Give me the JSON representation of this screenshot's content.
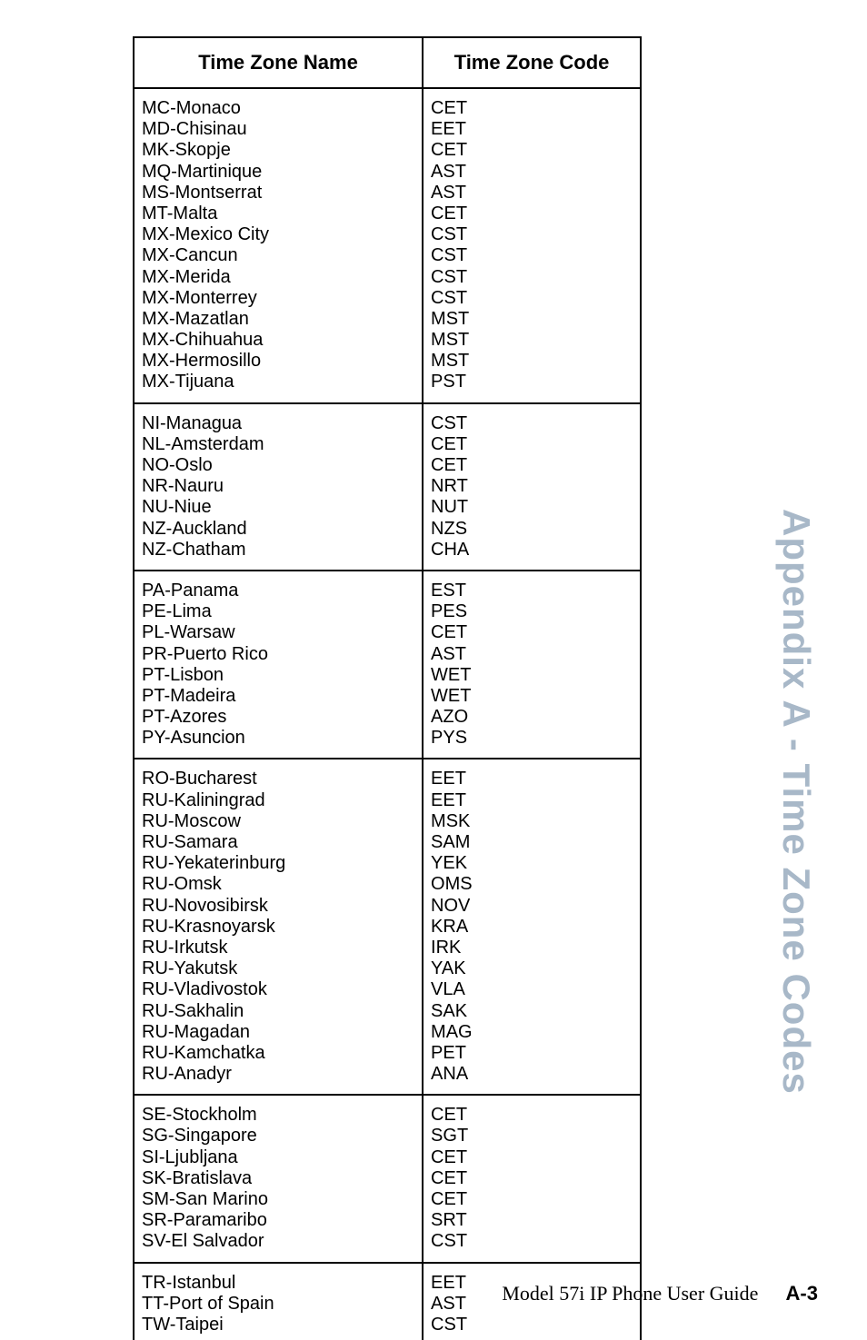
{
  "sidebar_title": "Appendix A - Time Zone Codes",
  "footer": {
    "guide": "Model 57i IP Phone User Guide",
    "pagenum": "A-3"
  },
  "table": {
    "headers": {
      "name": "Time Zone Name",
      "code": "Time Zone Code"
    },
    "groups": [
      {
        "rows": [
          {
            "name": "MC-Monaco",
            "code": "CET"
          },
          {
            "name": "MD-Chisinau",
            "code": "EET"
          },
          {
            "name": "MK-Skopje",
            "code": "CET"
          },
          {
            "name": "MQ-Martinique",
            "code": "AST"
          },
          {
            "name": "MS-Montserrat",
            "code": "AST"
          },
          {
            "name": "MT-Malta",
            "code": "CET"
          },
          {
            "name": "MX-Mexico City",
            "code": "CST"
          },
          {
            "name": "MX-Cancun",
            "code": "CST"
          },
          {
            "name": "MX-Merida",
            "code": "CST"
          },
          {
            "name": "MX-Monterrey",
            "code": "CST"
          },
          {
            "name": "MX-Mazatlan",
            "code": "MST"
          },
          {
            "name": "MX-Chihuahua",
            "code": "MST"
          },
          {
            "name": "MX-Hermosillo",
            "code": "MST"
          },
          {
            "name": "MX-Tijuana",
            "code": "PST"
          }
        ]
      },
      {
        "rows": [
          {
            "name": "NI-Managua",
            "code": "CST"
          },
          {
            "name": "NL-Amsterdam",
            "code": "CET"
          },
          {
            "name": "NO-Oslo",
            "code": "CET"
          },
          {
            "name": "NR-Nauru",
            "code": "NRT"
          },
          {
            "name": "NU-Niue",
            "code": "NUT"
          },
          {
            "name": "NZ-Auckland",
            "code": "NZS"
          },
          {
            "name": "NZ-Chatham",
            "code": "CHA"
          }
        ]
      },
      {
        "rows": [
          {
            "name": "PA-Panama",
            "code": "EST"
          },
          {
            "name": "PE-Lima",
            "code": "PES"
          },
          {
            "name": "PL-Warsaw",
            "code": "CET"
          },
          {
            "name": "PR-Puerto Rico",
            "code": "AST"
          },
          {
            "name": "PT-Lisbon",
            "code": "WET"
          },
          {
            "name": "PT-Madeira",
            "code": "WET"
          },
          {
            "name": "PT-Azores",
            "code": "AZO"
          },
          {
            "name": "PY-Asuncion",
            "code": "PYS"
          }
        ]
      },
      {
        "rows": [
          {
            "name": "RO-Bucharest",
            "code": "EET"
          },
          {
            "name": "RU-Kaliningrad",
            "code": "EET"
          },
          {
            "name": "RU-Moscow",
            "code": "MSK"
          },
          {
            "name": "RU-Samara",
            "code": "SAM"
          },
          {
            "name": "RU-Yekaterinburg",
            "code": "YEK"
          },
          {
            "name": "RU-Omsk",
            "code": "OMS"
          },
          {
            "name": "RU-Novosibirsk",
            "code": "NOV"
          },
          {
            "name": "RU-Krasnoyarsk",
            "code": "KRA"
          },
          {
            "name": "RU-Irkutsk",
            "code": "IRK"
          },
          {
            "name": "RU-Yakutsk",
            "code": "YAK"
          },
          {
            "name": "RU-Vladivostok",
            "code": "VLA"
          },
          {
            "name": "RU-Sakhalin",
            "code": "SAK"
          },
          {
            "name": "RU-Magadan",
            "code": "MAG"
          },
          {
            "name": "RU-Kamchatka",
            "code": "PET"
          },
          {
            "name": "RU-Anadyr",
            "code": "ANA"
          }
        ]
      },
      {
        "rows": [
          {
            "name": "SE-Stockholm",
            "code": "CET"
          },
          {
            "name": "SG-Singapore",
            "code": "SGT"
          },
          {
            "name": "SI-Ljubljana",
            "code": "CET"
          },
          {
            "name": "SK-Bratislava",
            "code": "CET"
          },
          {
            "name": "SM-San Marino",
            "code": "CET"
          },
          {
            "name": "SR-Paramaribo",
            "code": "SRT"
          },
          {
            "name": "SV-El Salvador",
            "code": "CST"
          }
        ]
      },
      {
        "rows": [
          {
            "name": "TR-Istanbul",
            "code": "EET"
          },
          {
            "name": "TT-Port of Spain",
            "code": "AST"
          },
          {
            "name": "TW-Taipei",
            "code": "CST"
          }
        ]
      }
    ]
  }
}
